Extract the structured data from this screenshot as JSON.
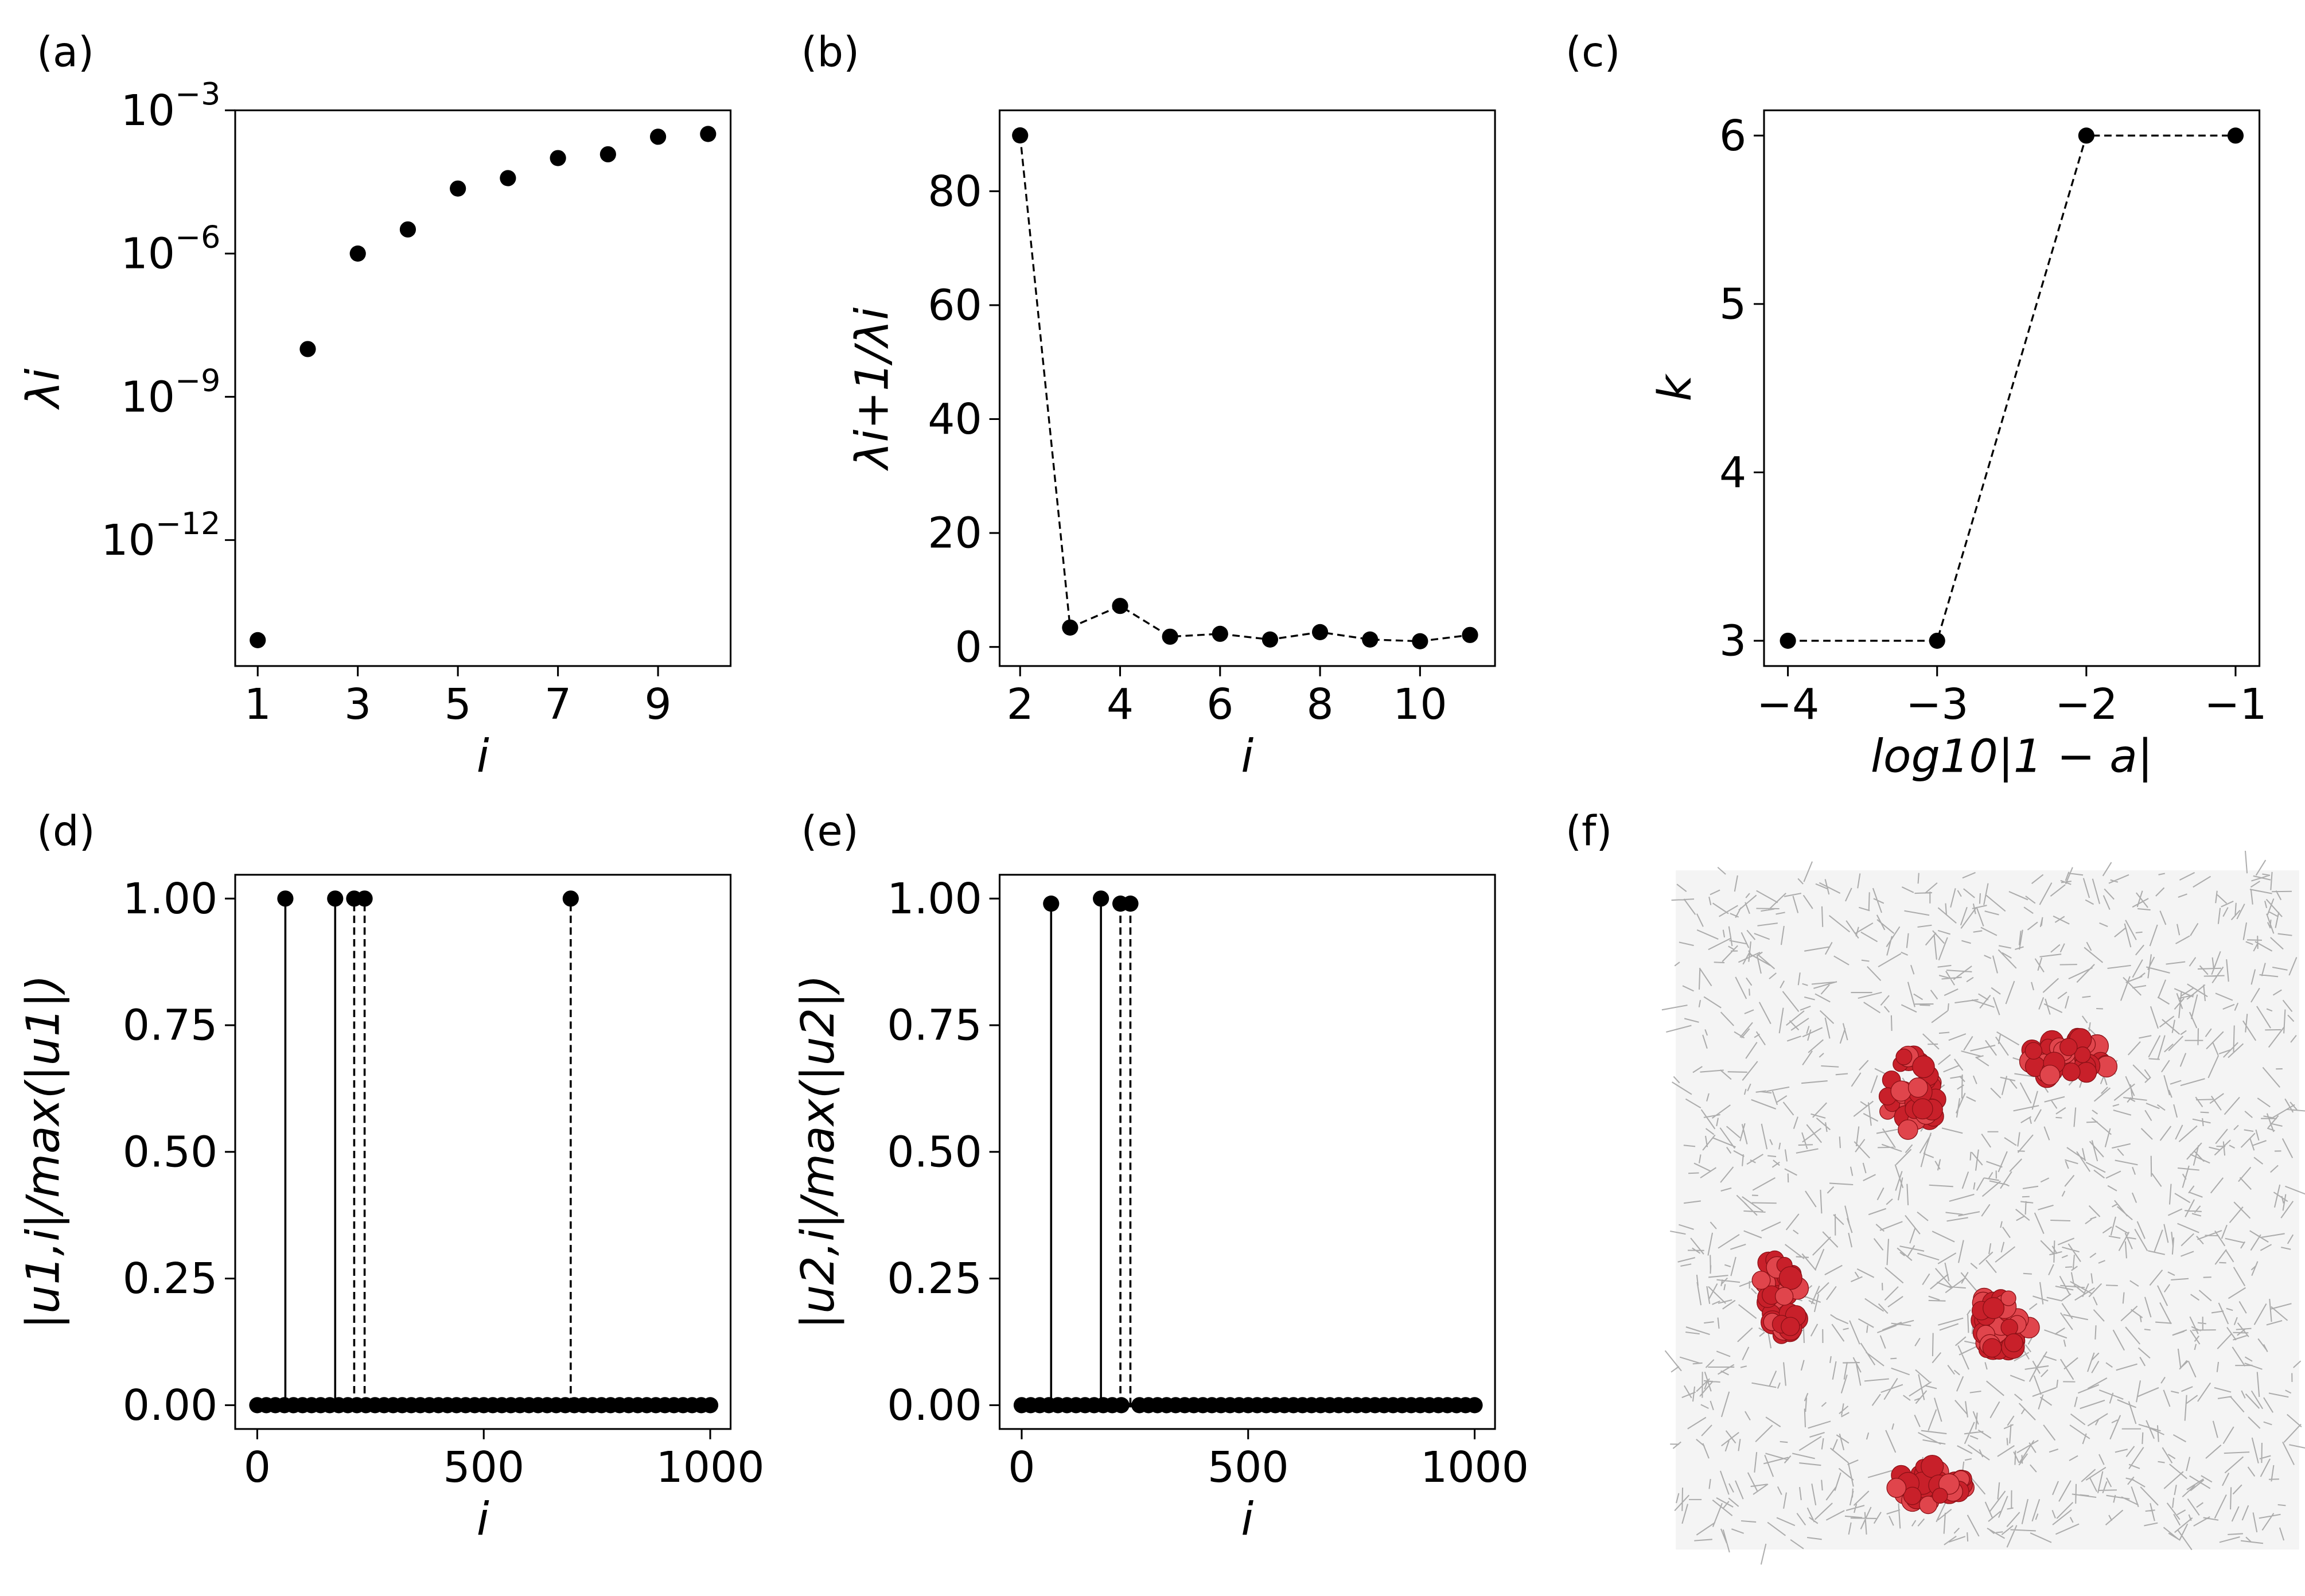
{
  "chart_data": [
    {
      "type": "scatter",
      "label": "(a)",
      "xlabel": "i",
      "ylabel": "λi",
      "yscale": "log",
      "color": "#000000",
      "x": [
        1,
        2,
        3,
        4,
        5,
        6,
        7,
        8,
        9,
        10
      ],
      "values": [
        8e-15,
        1e-08,
        1e-06,
        3.2e-06,
        2.3e-05,
        3.8e-05,
        0.0001,
        0.00012,
        0.00028,
        0.00032
      ],
      "xlim": [
        0.55,
        10.45
      ],
      "xticks": [
        1,
        3,
        5,
        7,
        9
      ],
      "ylim": [
        2.3e-15,
        0.001
      ],
      "yticks": [
        {
          "value": 1e-12,
          "label": "10",
          "exponent": "−12"
        },
        {
          "value": 1e-09,
          "label": "10",
          "exponent": "−9"
        },
        {
          "value": 1e-06,
          "label": "10",
          "exponent": "−6"
        },
        {
          "value": 0.001,
          "label": "10",
          "exponent": "−3"
        }
      ]
    },
    {
      "type": "line",
      "label": "(b)",
      "xlabel": "i",
      "ylabel": "λi+1/λi",
      "linestyle": "dashed",
      "color": "#000000",
      "x": [
        2,
        3,
        4,
        5,
        6,
        7,
        8,
        9,
        10,
        11
      ],
      "values": [
        89.8,
        3.4,
        7.2,
        1.8,
        2.3,
        1.3,
        2.6,
        1.3,
        1.0,
        2.1
      ],
      "xlim": [
        1.59,
        11.5
      ],
      "xticks": [
        2,
        4,
        6,
        8,
        10
      ],
      "ylim": [
        -3.35,
        94.2
      ],
      "yticks": [
        0,
        20,
        40,
        60,
        80
      ]
    },
    {
      "type": "line",
      "label": "(c)",
      "xlabel": "log10|1 − a|",
      "ylabel": "k",
      "linestyle": "dashed",
      "color": "#000000",
      "x": [
        -4,
        -3,
        -2,
        -1
      ],
      "values": [
        3,
        3,
        6,
        6
      ],
      "xlim": [
        -4.16,
        -0.84
      ],
      "xticks": [
        {
          "value": -4,
          "label": "−4"
        },
        {
          "value": -3,
          "label": "−3"
        },
        {
          "value": -2,
          "label": "−2"
        },
        {
          "value": -1,
          "label": "−1"
        }
      ],
      "ylim": [
        2.85,
        6.15
      ],
      "yticks": [
        3,
        4,
        5,
        6
      ]
    },
    {
      "type": "stem",
      "label": "(d)",
      "xlabel": "i",
      "ylabel": "|u1,i|/max(|u1|)",
      "color": "#000000",
      "x": [
        0,
        20,
        40,
        60,
        62,
        80,
        100,
        120,
        140,
        160,
        172,
        180,
        200,
        214,
        220,
        237,
        240,
        260,
        280,
        300,
        320,
        340,
        360,
        380,
        400,
        420,
        440,
        460,
        480,
        500,
        520,
        540,
        560,
        580,
        600,
        620,
        640,
        660,
        680,
        692,
        700,
        720,
        740,
        760,
        780,
        800,
        820,
        840,
        860,
        880,
        900,
        920,
        940,
        960,
        980,
        1000
      ],
      "values": [
        0,
        0,
        0,
        0,
        1,
        0,
        0,
        0,
        0,
        0,
        1,
        0,
        0,
        1,
        0,
        1,
        0,
        0,
        0,
        0,
        0,
        0,
        0,
        0,
        0,
        0,
        0,
        0,
        0,
        0,
        0,
        0,
        0,
        0,
        0,
        0,
        0,
        0,
        0,
        1,
        0,
        0,
        0,
        0,
        0,
        0,
        0,
        0,
        0,
        0,
        0,
        0,
        0,
        0,
        0,
        0
      ],
      "xlim": [
        -48.7,
        1045
      ],
      "xticks": [
        0,
        500,
        1000
      ],
      "ylim": [
        -0.047,
        1.047
      ],
      "yticks": [
        {
          "value": 0,
          "label": "0.00"
        },
        0.25,
        {
          "value": 0.5,
          "label": "0.50"
        },
        0.75,
        {
          "value": 1,
          "label": "1.00"
        }
      ]
    },
    {
      "type": "stem",
      "label": "(e)",
      "xlabel": "i",
      "ylabel": "|u2,i|/max(|u2|)",
      "color": "#000000",
      "x": [
        0,
        20,
        40,
        60,
        65,
        80,
        100,
        120,
        140,
        160,
        175,
        180,
        200,
        218,
        220,
        240,
        260,
        280,
        300,
        320,
        340,
        360,
        380,
        400,
        420,
        440,
        460,
        480,
        500,
        520,
        540,
        560,
        580,
        600,
        620,
        640,
        660,
        680,
        700,
        720,
        740,
        760,
        780,
        800,
        820,
        840,
        860,
        880,
        900,
        920,
        940,
        960,
        980,
        1000
      ],
      "values": [
        0,
        0,
        0,
        0,
        0.99,
        0,
        0,
        0,
        0,
        0,
        1,
        0,
        0,
        0.99,
        0,
        0.99,
        0,
        0,
        0,
        0,
        0,
        0,
        0,
        0,
        0,
        0,
        0,
        0,
        0,
        0,
        0,
        0,
        0,
        0,
        0,
        0,
        0,
        0,
        0,
        0,
        0,
        0,
        0,
        0,
        0,
        0,
        0,
        0,
        0,
        0,
        0,
        0,
        0,
        0
      ],
      "xlim": [
        -48.7,
        1045
      ],
      "xticks": [
        0,
        500,
        1000
      ],
      "ylim": [
        -0.047,
        1.047
      ],
      "yticks": [
        {
          "value": 0,
          "label": "0.00"
        },
        0.25,
        {
          "value": 0.5,
          "label": "0.50"
        },
        0.75,
        {
          "value": 1,
          "label": "1.00"
        }
      ]
    }
  ],
  "image_panel": {
    "label": "(f)"
  }
}
